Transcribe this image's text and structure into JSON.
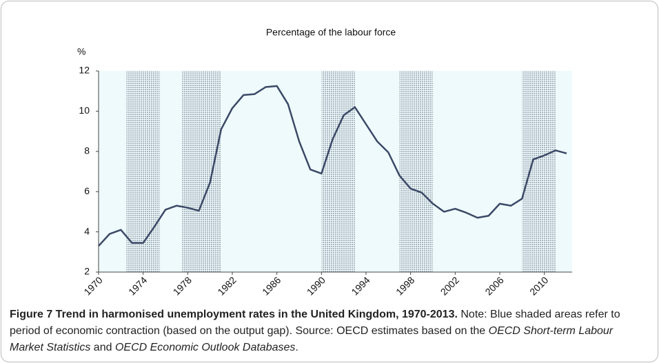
{
  "chart_data": {
    "type": "line",
    "subtitle": "Percentage of the labour force",
    "y_unit": "%",
    "x": [
      1970,
      1971,
      1972,
      1973,
      1974,
      1975,
      1976,
      1977,
      1978,
      1979,
      1980,
      1981,
      1982,
      1983,
      1984,
      1985,
      1986,
      1987,
      1988,
      1989,
      1990,
      1991,
      1992,
      1993,
      1994,
      1995,
      1996,
      1997,
      1998,
      1999,
      2000,
      2001,
      2002,
      2003,
      2004,
      2005,
      2006,
      2007,
      2008,
      2009,
      2010,
      2011,
      2012
    ],
    "values": [
      3.3,
      3.9,
      4.1,
      3.45,
      3.45,
      4.25,
      5.1,
      5.3,
      5.2,
      5.05,
      6.45,
      9.1,
      10.15,
      10.8,
      10.85,
      11.2,
      11.25,
      10.35,
      8.5,
      7.1,
      6.9,
      8.6,
      9.8,
      10.2,
      9.35,
      8.5,
      7.95,
      6.8,
      6.15,
      5.95,
      5.4,
      5.0,
      5.15,
      4.95,
      4.7,
      4.8,
      5.4,
      5.3,
      5.65,
      7.6,
      7.8,
      8.05,
      7.9
    ],
    "color": "#3b4866",
    "xlim": [
      1970,
      2012
    ],
    "xticks": [
      1970,
      1974,
      1978,
      1982,
      1986,
      1990,
      1994,
      1998,
      2002,
      2006,
      2010
    ],
    "ylim": [
      2,
      12
    ],
    "yticks": [
      2,
      4,
      6,
      8,
      10,
      12
    ],
    "background": "#eefafc",
    "shade_color": "#a9b5bd",
    "shaded_periods": [
      [
        1972.5,
        1975.5
      ],
      [
        1977.5,
        1981
      ],
      [
        1990,
        1993
      ],
      [
        1997,
        2000
      ],
      [
        2008,
        2011
      ]
    ]
  },
  "caption": {
    "title": "Figure 7 Trend in harmonised unemployment rates in the United Kingdom, 1970-2013.",
    "note": " Note: Blue shaded areas refer to period of economic contraction (based on the output gap). Source: OECD estimates based on the ",
    "source1": "OECD Short-term Labour Market Statistics",
    "joiner": " and ",
    "source2": "OECD Economic Outlook Databases",
    "end": "."
  }
}
